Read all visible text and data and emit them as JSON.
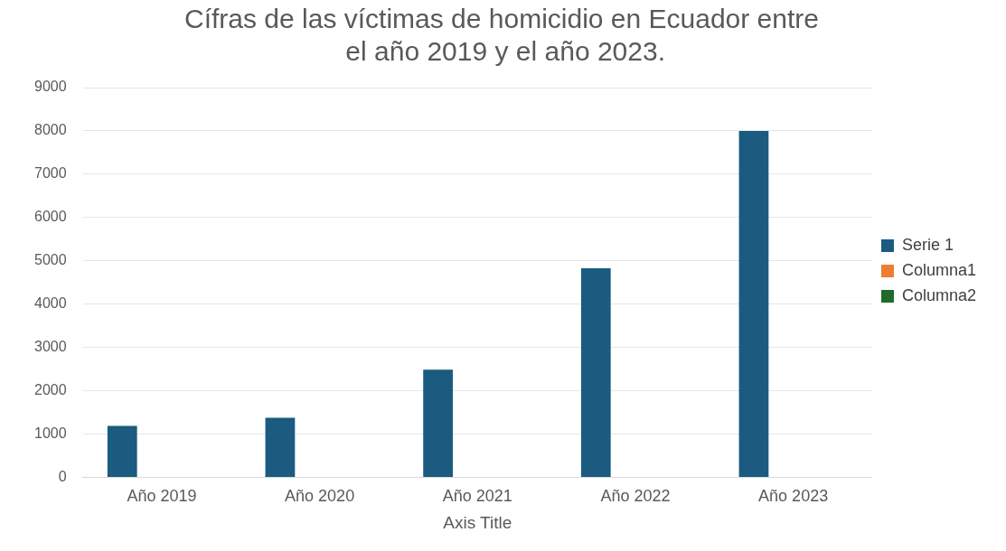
{
  "chart_data": {
    "type": "bar",
    "title": "Cífras de las víctimas de homicidio en Ecuador entre el año 2019 y el año 2023.",
    "xlabel": "Axis Title",
    "categories": [
      "Año 2019",
      "Año 2020",
      "Año 2021",
      "Año 2022",
      "Año 2023"
    ],
    "series": [
      {
        "name": "Serie 1",
        "color": "#1a5b7f",
        "values": [
          1190,
          1380,
          2490,
          4830,
          8000
        ]
      },
      {
        "name": "Columna1",
        "color": "#ed7d31",
        "values": [
          null,
          null,
          null,
          null,
          null
        ]
      },
      {
        "name": "Columna2",
        "color": "#1e6b2a",
        "values": [
          null,
          null,
          null,
          null,
          null
        ]
      }
    ],
    "ylim": [
      0,
      9000
    ],
    "yticks": [
      0,
      1000,
      2000,
      3000,
      4000,
      5000,
      6000,
      7000,
      8000,
      9000
    ],
    "grid": "y",
    "legend": "right"
  }
}
